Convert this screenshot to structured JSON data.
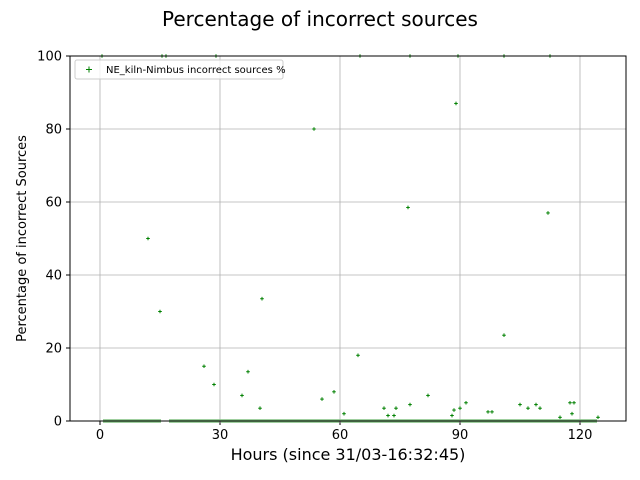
{
  "chart_data": {
    "type": "scatter",
    "title": "Percentage of incorrect sources",
    "xlabel": "Hours (since 31/03-16:32:45)",
    "ylabel": "Percentage of incorrect Sources",
    "xlim": [
      -7.5,
      131.5
    ],
    "ylim": [
      0,
      100
    ],
    "xticks": [
      0,
      30,
      60,
      90,
      120
    ],
    "yticks": [
      0,
      20,
      40,
      60,
      80,
      100
    ],
    "grid": true,
    "legend_position": "top-left",
    "series": [
      {
        "name": "NE_kiln-Nimbus incorrect sources %",
        "color": "#008000",
        "marker": "+",
        "points": [
          [
            0.5,
            100
          ],
          [
            12,
            50
          ],
          [
            15,
            30
          ],
          [
            15.5,
            100
          ],
          [
            16.5,
            100
          ],
          [
            29,
            100
          ],
          [
            26,
            15
          ],
          [
            28.5,
            10
          ],
          [
            35.5,
            7
          ],
          [
            37,
            13.5
          ],
          [
            40,
            3.5
          ],
          [
            40.5,
            33.5
          ],
          [
            53.5,
            80
          ],
          [
            55.5,
            6
          ],
          [
            58.5,
            8
          ],
          [
            61,
            2
          ],
          [
            64.5,
            18
          ],
          [
            65,
            100
          ],
          [
            71,
            3.5
          ],
          [
            72,
            1.5
          ],
          [
            73.5,
            1.5
          ],
          [
            74,
            3.5
          ],
          [
            77,
            58.5
          ],
          [
            77.5,
            4.5
          ],
          [
            77.5,
            100
          ],
          [
            82,
            7
          ],
          [
            88,
            1.5
          ],
          [
            88.5,
            3
          ],
          [
            89,
            87
          ],
          [
            89.5,
            100
          ],
          [
            90,
            3.5
          ],
          [
            91.5,
            5
          ],
          [
            97,
            2.5
          ],
          [
            98,
            2.5
          ],
          [
            101,
            23.5
          ],
          [
            101,
            100
          ],
          [
            105,
            4.5
          ],
          [
            107,
            3.5
          ],
          [
            109,
            4.5
          ],
          [
            110,
            3.5
          ],
          [
            112,
            57
          ],
          [
            112.5,
            100
          ],
          [
            115,
            1
          ],
          [
            117.5,
            5
          ],
          [
            118,
            2
          ],
          [
            118.5,
            5
          ],
          [
            124.5,
            1
          ]
        ],
        "zero_runs": [
          [
            1,
            15
          ],
          [
            17.5,
            124
          ]
        ]
      }
    ]
  }
}
